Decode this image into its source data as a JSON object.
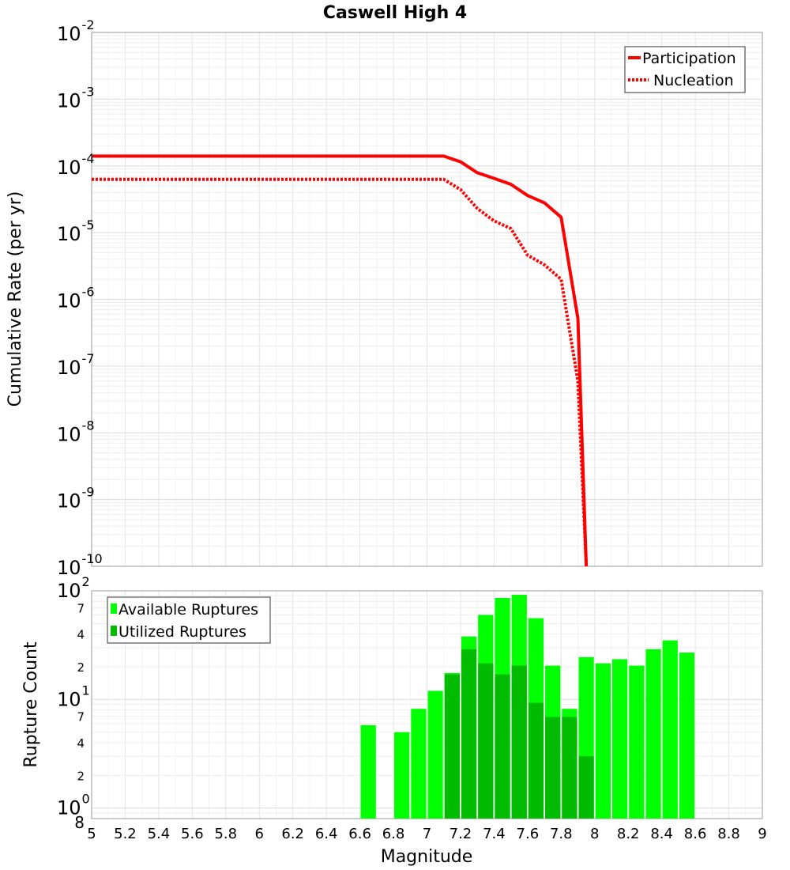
{
  "chart_data": [
    {
      "type": "line",
      "title": "Caswell High 4",
      "ylabel": "Cumulative Rate (per yr)",
      "xlim": [
        5,
        9
      ],
      "ylim": [
        1e-10,
        0.01
      ],
      "y_scale": "log",
      "grid": true,
      "legend_position": "top-right",
      "y_ticks": [
        {
          "base": "10",
          "exp": "-2"
        },
        {
          "base": "10",
          "exp": "-3"
        },
        {
          "base": "10",
          "exp": "-4"
        },
        {
          "base": "10",
          "exp": "-5"
        },
        {
          "base": "10",
          "exp": "-6"
        },
        {
          "base": "10",
          "exp": "-7"
        },
        {
          "base": "10",
          "exp": "-8"
        },
        {
          "base": "10",
          "exp": "-9"
        },
        {
          "base": "10",
          "exp": "-10"
        }
      ],
      "series": [
        {
          "name": "Participation",
          "style": "solid",
          "color": "#ff0000",
          "x": [
            5.0,
            7.1,
            7.2,
            7.3,
            7.4,
            7.5,
            7.6,
            7.7,
            7.8,
            7.9,
            7.95
          ],
          "y": [
            0.00014,
            0.00014,
            0.000115,
            7.9e-05,
            6.5e-05,
            5.3e-05,
            3.6e-05,
            2.8e-05,
            1.7e-05,
            5.2e-07,
            1e-10
          ]
        },
        {
          "name": "Nucleation",
          "style": "dotted",
          "color": "#ff0000",
          "x": [
            5.0,
            7.1,
            7.2,
            7.3,
            7.4,
            7.5,
            7.6,
            7.7,
            7.8,
            7.9,
            7.95
          ],
          "y": [
            6.3e-05,
            6.3e-05,
            4.4e-05,
            2.3e-05,
            1.5e-05,
            1.15e-05,
            4.6e-06,
            3.3e-06,
            2e-06,
            6e-08,
            1e-10
          ]
        }
      ]
    },
    {
      "type": "bar",
      "ylabel": "Rupture Count",
      "xlabel": "Magnitude",
      "xlim": [
        5,
        9
      ],
      "ylim": [
        0.8,
        100
      ],
      "y_scale": "log",
      "grid": true,
      "legend_position": "top-left",
      "bar_width": 0.1,
      "x_ticks": [
        "5",
        "5.2",
        "5.4",
        "5.6",
        "5.8",
        "6",
        "6.2",
        "6.4",
        "6.6",
        "6.8",
        "7",
        "7.2",
        "7.4",
        "7.6",
        "7.8",
        "8",
        "8.2",
        "8.4",
        "8.6",
        "8.8",
        "9"
      ],
      "y_major_ticks": [
        {
          "value": 1,
          "base": "10",
          "exp": "0"
        },
        {
          "value": 10,
          "base": "10",
          "exp": "1"
        },
        {
          "value": 100,
          "base": "10",
          "exp": "2"
        }
      ],
      "y_minor_labels": [
        {
          "value": 0.8,
          "label": "8"
        },
        {
          "value": 2,
          "label": "2"
        },
        {
          "value": 4,
          "label": "4"
        },
        {
          "value": 7,
          "label": "7"
        },
        {
          "value": 20,
          "label": "2"
        },
        {
          "value": 40,
          "label": "4"
        },
        {
          "value": 70,
          "label": "7"
        }
      ],
      "series": [
        {
          "name": "Available Ruptures",
          "color": "#00ff00",
          "x": [
            6.65,
            6.85,
            6.95,
            7.05,
            7.15,
            7.25,
            7.35,
            7.45,
            7.55,
            7.65,
            7.75,
            7.85,
            7.95,
            8.05,
            8.15,
            8.25,
            8.35,
            8.45,
            8.55
          ],
          "values": [
            5.8,
            5.0,
            8.2,
            12,
            17.5,
            38,
            60,
            86,
            92,
            56,
            20.5,
            8.2,
            24.5,
            21.5,
            23.5,
            20.5,
            29,
            35,
            27
          ]
        },
        {
          "name": "Utilized Ruptures",
          "color": "#00bb00",
          "x": [
            7.15,
            7.25,
            7.35,
            7.45,
            7.55,
            7.65,
            7.75,
            7.85,
            7.95
          ],
          "values": [
            17,
            29,
            21.5,
            17,
            20.5,
            9.3,
            6.9,
            6.9,
            3.0
          ]
        }
      ]
    }
  ]
}
